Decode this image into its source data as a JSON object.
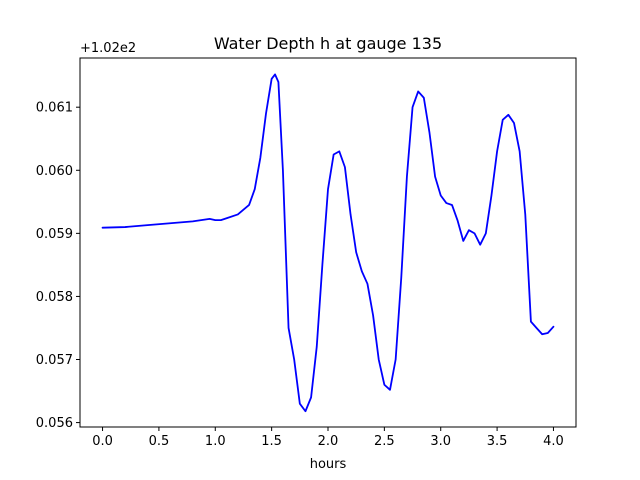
{
  "chart_data": {
    "type": "line",
    "title": "Water Depth h at gauge 135",
    "xlabel": "hours",
    "ylabel": "",
    "offset_label": "+1.02e2",
    "xlim": [
      -0.2,
      4.2
    ],
    "ylim": [
      0.05593,
      0.06178
    ],
    "xticks": [
      0.0,
      0.5,
      1.0,
      1.5,
      2.0,
      2.5,
      3.0,
      3.5,
      4.0
    ],
    "xtick_labels": [
      "0.0",
      "0.5",
      "1.0",
      "1.5",
      "2.0",
      "2.5",
      "3.0",
      "3.5",
      "4.0"
    ],
    "yticks": [
      0.056,
      0.057,
      0.058,
      0.059,
      0.06,
      0.061
    ],
    "ytick_labels": [
      "0.056",
      "0.057",
      "0.058",
      "0.059",
      "0.060",
      "0.061"
    ],
    "grid": false,
    "series": [
      {
        "color": "#0000ff",
        "x": [
          0.0,
          0.2,
          0.4,
          0.6,
          0.8,
          0.95,
          1.0,
          1.05,
          1.1,
          1.2,
          1.3,
          1.35,
          1.4,
          1.45,
          1.5,
          1.53,
          1.56,
          1.6,
          1.65,
          1.7,
          1.75,
          1.8,
          1.85,
          1.9,
          1.95,
          2.0,
          2.05,
          2.1,
          2.15,
          2.2,
          2.25,
          2.3,
          2.35,
          2.4,
          2.45,
          2.5,
          2.55,
          2.6,
          2.65,
          2.7,
          2.75,
          2.8,
          2.85,
          2.9,
          2.95,
          3.0,
          3.05,
          3.1,
          3.15,
          3.2,
          3.25,
          3.3,
          3.35,
          3.4,
          3.45,
          3.5,
          3.55,
          3.6,
          3.65,
          3.7,
          3.75,
          3.8,
          3.85,
          3.9,
          3.95,
          4.0
        ],
        "y": [
          0.05909,
          0.0591,
          0.05913,
          0.05916,
          0.05919,
          0.05923,
          0.05921,
          0.05921,
          0.05924,
          0.0593,
          0.05945,
          0.0597,
          0.0602,
          0.0609,
          0.06145,
          0.06152,
          0.0614,
          0.06,
          0.0575,
          0.057,
          0.0563,
          0.05618,
          0.0564,
          0.0572,
          0.0585,
          0.0597,
          0.06025,
          0.0603,
          0.06005,
          0.0593,
          0.0587,
          0.0584,
          0.0582,
          0.0577,
          0.057,
          0.0566,
          0.05652,
          0.057,
          0.0583,
          0.0599,
          0.061,
          0.06125,
          0.06115,
          0.0606,
          0.0599,
          0.0596,
          0.05948,
          0.05945,
          0.0592,
          0.05888,
          0.05905,
          0.059,
          0.05882,
          0.059,
          0.0596,
          0.0603,
          0.0608,
          0.06088,
          0.06075,
          0.0603,
          0.0593,
          0.0576,
          0.0575,
          0.0574,
          0.05742,
          0.05752
        ]
      }
    ]
  }
}
